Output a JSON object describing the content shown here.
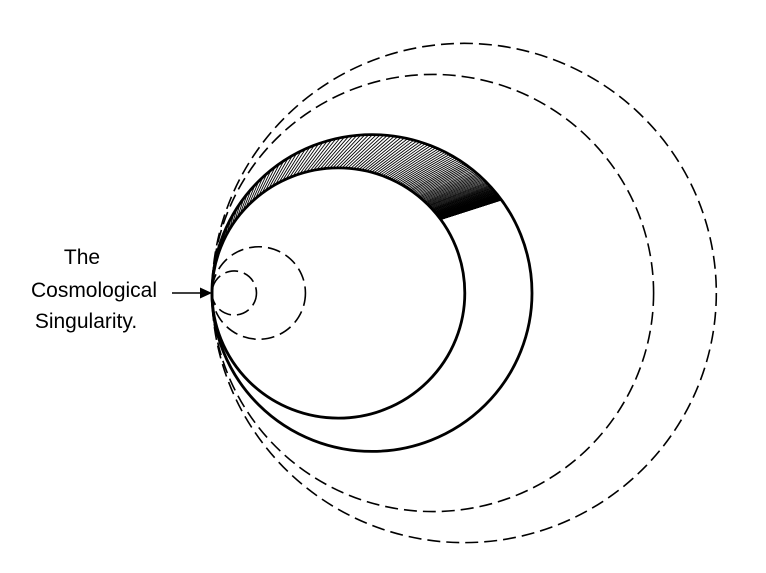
{
  "annotation": {
    "lines": [
      "The",
      "Cosmological",
      "Singularity."
    ]
  },
  "diagram": {
    "stroke_color": "#000000",
    "background_color": "#ffffff",
    "circles": [
      {
        "id": "circle-1",
        "style": "dashed",
        "relative_radius": 0.139
      },
      {
        "id": "circle-2",
        "style": "dashed",
        "relative_radius": 0.292
      },
      {
        "id": "circle-3",
        "style": "solid",
        "relative_radius": 0.79
      },
      {
        "id": "circle-4",
        "style": "solid",
        "relative_radius": 1.0
      },
      {
        "id": "circle-5",
        "style": "dashed",
        "relative_radius": 1.38
      },
      {
        "id": "circle-6",
        "style": "dashed",
        "relative_radius": 1.576
      }
    ],
    "hatched_band": {
      "between": [
        "circle-3",
        "circle-4"
      ],
      "line_count": 150
    }
  }
}
